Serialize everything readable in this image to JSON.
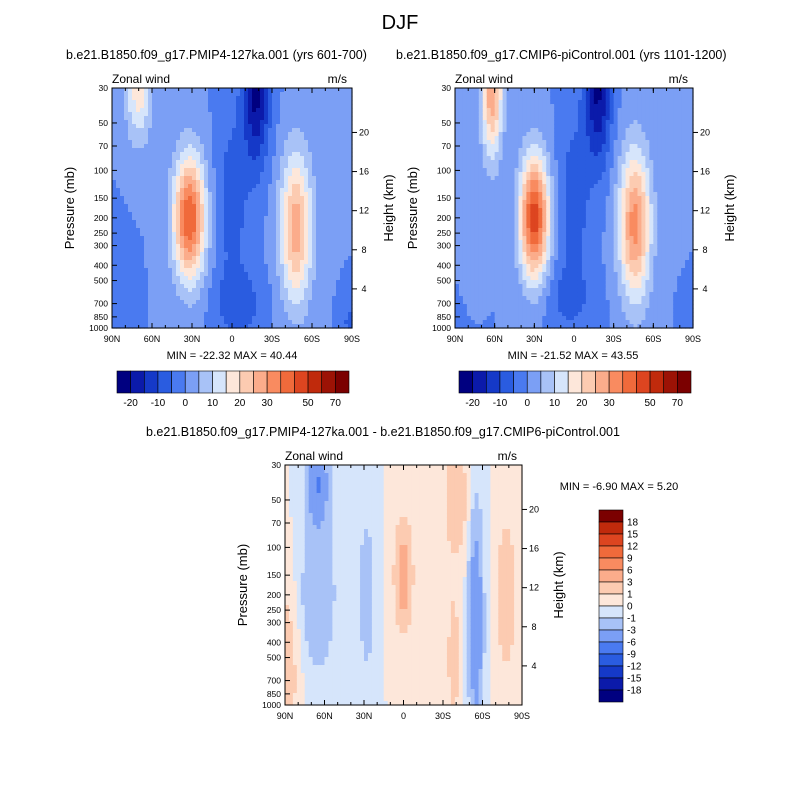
{
  "main_title": "DJF",
  "titles": {
    "left": "b.e21.B1850.f09_g17.PMIP4-127ka.001 (yrs 601-700)",
    "right": "b.e21.B1850.f09_g17.CMIP6-piControl.001 (yrs 1101-1200)",
    "diff": "b.e21.B1850.f09_g17.PMIP4-127ka.001 - b.e21.B1850.f09_g17.CMIP6-piControl.001"
  },
  "labels": {
    "variable": "Zonal wind",
    "units": "m/s",
    "ylabel": "Pressure (mb)",
    "y2label": "Height (km)"
  },
  "stats": {
    "left": "MIN = -22.32  MAX =  40.44",
    "right": "MIN = -21.52  MAX =  43.55",
    "diff": "MIN =  -6.90  MAX =   5.20"
  },
  "axes": {
    "x_ticks": [
      "90N",
      "60N",
      "30N",
      "0",
      "30S",
      "60S",
      "90S"
    ],
    "x_lat": [
      90,
      60,
      30,
      0,
      -30,
      -60,
      -90
    ],
    "pressure_ticks": [
      30,
      50,
      70,
      100,
      150,
      200,
      250,
      300,
      400,
      500,
      700,
      850,
      1000
    ],
    "height_ticks": [
      4,
      8,
      12,
      16,
      20
    ],
    "x_range": [
      90,
      -90
    ],
    "p_range": [
      30,
      1000
    ],
    "p_scale": "log"
  },
  "colors": {
    "abs_levels": [
      -20,
      -15,
      -10,
      -5,
      0,
      5,
      10,
      15,
      20,
      25,
      30,
      35,
      40,
      50,
      60,
      70
    ],
    "abs_tick_labels": [
      "-20",
      "-10",
      "0",
      "10",
      "20",
      "30",
      "50",
      "70"
    ],
    "abs_palette": [
      "#000080",
      "#0b1aaa",
      "#1539c8",
      "#2a5ce0",
      "#4a7af0",
      "#7b9ff5",
      "#a8c2f7",
      "#d6e5fb",
      "#fde7da",
      "#fccbb1",
      "#fbac8b",
      "#f98b60",
      "#f06a3b",
      "#dd4520",
      "#c02a0c",
      "#9c1205",
      "#7b0000"
    ],
    "diff_levels": [
      -18,
      -15,
      -12,
      -9,
      -6,
      -3,
      -1,
      0,
      1,
      3,
      6,
      9,
      12,
      15,
      18
    ],
    "diff_tick_labels": [
      "18",
      "15",
      "12",
      "9",
      "6",
      "3",
      "1",
      "0",
      "-1",
      "-3",
      "-6",
      "-9",
      "-12",
      "-15",
      "-18"
    ],
    "diff_palette": [
      "#000080",
      "#0b1aaa",
      "#1539c8",
      "#2a5ce0",
      "#4a7af0",
      "#7b9ff5",
      "#a8c2f7",
      "#d6e5fb",
      "#fde7da",
      "#fccbb1",
      "#fbac8b",
      "#f98b60",
      "#f06a3b",
      "#dd4520",
      "#c02a0c",
      "#7b0000"
    ]
  },
  "chart_data": [
    {
      "type": "heatmap",
      "title": "b.e21.B1850.f09_g17.PMIP4-127ka.001 (yrs 601-700)",
      "variable": "Zonal wind",
      "units": "m/s",
      "xlabel": "",
      "ylabel": "Pressure (mb)",
      "y2label": "Height (km)",
      "min": -22.32,
      "max": 40.44,
      "features": [
        {
          "lat": 32,
          "p": 200,
          "value": 40,
          "wlat": 12,
          "wlnp": 0.9
        },
        {
          "lat": -48,
          "p": 230,
          "value": 28,
          "wlat": 12,
          "wlnp": 1.1
        },
        {
          "lat": 70,
          "p": 30,
          "value": 18,
          "wlat": 10,
          "wlnp": 0.8
        },
        {
          "lat": -18,
          "p": 30,
          "value": -22,
          "wlat": 10,
          "wlnp": 1.1
        },
        {
          "lat": 0,
          "p": 150,
          "value": -8,
          "wlat": 12,
          "wlnp": 1.2
        },
        {
          "lat": -5,
          "p": 700,
          "value": -8,
          "wlat": 18,
          "wlnp": 0.5
        },
        {
          "lat": 88,
          "p": 700,
          "value": -5,
          "wlat": 10,
          "wlnp": 0.8
        },
        {
          "lat": -88,
          "p": 900,
          "value": -6,
          "wlat": 6,
          "wlnp": 0.3
        }
      ]
    },
    {
      "type": "heatmap",
      "title": "b.e21.B1850.f09_g17.CMIP6-piControl.001 (yrs 1101-1200)",
      "variable": "Zonal wind",
      "units": "m/s",
      "xlabel": "",
      "ylabel": "Pressure (mb)",
      "y2label": "Height (km)",
      "min": -21.52,
      "max": 43.55,
      "features": [
        {
          "lat": 30,
          "p": 200,
          "value": 43,
          "wlat": 11,
          "wlnp": 0.9
        },
        {
          "lat": -46,
          "p": 220,
          "value": 32,
          "wlat": 12,
          "wlnp": 1.1
        },
        {
          "lat": 62,
          "p": 30,
          "value": 30,
          "wlat": 8,
          "wlnp": 1.0
        },
        {
          "lat": -18,
          "p": 30,
          "value": -21,
          "wlat": 10,
          "wlnp": 1.1
        },
        {
          "lat": 0,
          "p": 150,
          "value": -8,
          "wlat": 12,
          "wlnp": 1.2
        },
        {
          "lat": 5,
          "p": 650,
          "value": -6,
          "wlat": 20,
          "wlnp": 0.5
        },
        {
          "lat": -88,
          "p": 900,
          "value": -5,
          "wlat": 6,
          "wlnp": 0.3
        }
      ]
    },
    {
      "type": "heatmap",
      "title": "b.e21.B1850.f09_g17.PMIP4-127ka.001 - b.e21.B1850.f09_g17.CMIP6-piControl.001",
      "variable": "Zonal wind",
      "units": "m/s",
      "xlabel": "",
      "ylabel": "Pressure (mb)",
      "y2label": "Height (km)",
      "min": -6.9,
      "max": 5.2,
      "features": [
        {
          "lat": 65,
          "p": 40,
          "value": -6,
          "wlat": 8,
          "wlnp": 0.6
        },
        {
          "lat": 65,
          "p": 200,
          "value": -3,
          "wlat": 12,
          "wlnp": 1.0
        },
        {
          "lat": 28,
          "p": 200,
          "value": -3,
          "wlat": 5,
          "wlnp": 0.9
        },
        {
          "lat": 0,
          "p": 150,
          "value": 5,
          "wlat": 6,
          "wlnp": 0.7
        },
        {
          "lat": -40,
          "p": 50,
          "value": 2,
          "wlat": 10,
          "wlnp": 0.8
        },
        {
          "lat": -55,
          "p": 300,
          "value": -6,
          "wlat": 5,
          "wlnp": 1.5
        },
        {
          "lat": -78,
          "p": 200,
          "value": 2,
          "wlat": 8,
          "wlnp": 1.2
        },
        {
          "lat": -38,
          "p": 500,
          "value": 1.5,
          "wlat": 6,
          "wlnp": 1.2
        },
        {
          "lat": 90,
          "p": 600,
          "value": 2,
          "wlat": 10,
          "wlnp": 1.2
        }
      ]
    }
  ]
}
